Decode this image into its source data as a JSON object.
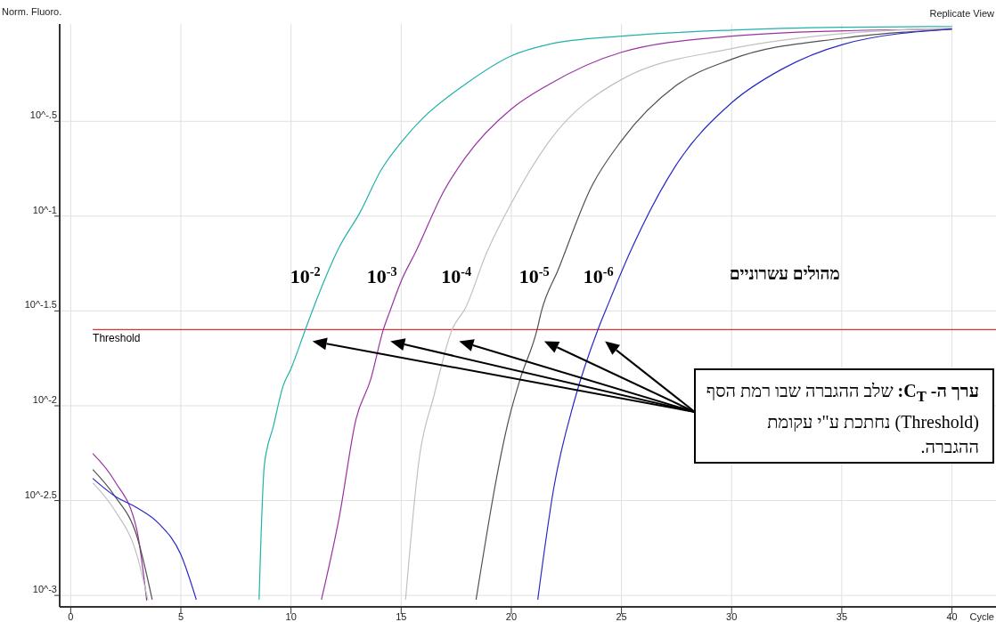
{
  "chart_data": {
    "type": "line",
    "log": "y",
    "grid": true,
    "xlabel": "Cycle",
    "ylabel": "Norm. Fluoro.",
    "legend_title": "מהולים עשרוניים",
    "xlim": [
      -0.5,
      42
    ],
    "xticks": [
      0,
      5,
      10,
      15,
      20,
      25,
      30,
      35,
      40
    ],
    "ylim": [
      0.00087,
      1.03
    ],
    "yticks": [
      {
        "value": 0.3162,
        "label": "10^-.5"
      },
      {
        "value": 0.1,
        "label": "10^-1"
      },
      {
        "value": 0.03162,
        "label": "10^-1.5"
      },
      {
        "value": 0.01,
        "label": "10^-2"
      },
      {
        "value": 0.003162,
        "label": "10^-2.5"
      },
      {
        "value": 0.001,
        "label": "10^-3"
      }
    ],
    "ref_lines": [
      {
        "axis": "y",
        "value": 0.0252,
        "label": "Threshold",
        "color": "#e03030"
      }
    ],
    "annotations": [
      "Replicate View",
      "ערך ה- C$_{T}$: שלב ההגברה שבו רמת הסף (Threshold) נחתכת ע\"י עקומת ההגברה."
    ],
    "series": [
      {
        "name": "10$^{-2}$",
        "color": "#20b2aa",
        "x": [
          8.55,
          8.79,
          9.2,
          9.64,
          10,
          10.65,
          11,
          12.19,
          13.14,
          14.09,
          15.06,
          16,
          17.92,
          20,
          21.74,
          25,
          30,
          35,
          40
        ],
        "values": [
          0.00095,
          0.00487,
          0.0078,
          0.0127,
          0.0157,
          0.0252,
          0.0324,
          0.0686,
          0.105,
          0.175,
          0.25,
          0.33,
          0.497,
          0.7,
          0.807,
          0.889,
          0.957,
          0.99,
          1.0
        ]
      },
      {
        "name": "10$^{-3}$",
        "color": "#9932a0",
        "x": [
          1,
          2,
          3,
          3.45,
          7,
          11.38,
          12.19,
          12.95,
          13.62,
          14.19,
          14.48,
          15.06,
          15.63,
          16.96,
          17.92,
          20,
          21.74,
          25,
          30,
          35.1,
          40
        ],
        "values": [
          0.0056,
          0.004,
          0.00222,
          0.00094,
          null,
          0.00095,
          0.00259,
          0.0085,
          0.0138,
          0.0252,
          0.0313,
          0.0471,
          0.0637,
          0.137,
          0.204,
          0.367,
          0.497,
          0.731,
          0.889,
          0.949,
          0.968
        ]
      },
      {
        "name": "10$^{-4}$",
        "color": "#c0c0c0",
        "x": [
          1,
          2,
          3,
          3.5,
          8,
          15.2,
          15.82,
          16.48,
          17.31,
          17.92,
          18.87,
          20,
          21.74,
          25,
          30,
          35.1,
          40
        ],
        "values": [
          0.00392,
          0.00281,
          0.00164,
          0.00095,
          null,
          0.00095,
          0.00527,
          0.0112,
          0.0252,
          0.0328,
          0.0637,
          0.117,
          0.25,
          0.525,
          0.764,
          0.918,
          0.98
        ]
      },
      {
        "name": "10$^{-5}$",
        "color": "#505050",
        "x": [
          1,
          2,
          3,
          3.7,
          10,
          18.4,
          19.92,
          20.4,
          21.17,
          21.36,
          22.12,
          23.64,
          25,
          27.47,
          30,
          35.1,
          40
        ],
        "values": [
          0.00461,
          0.00334,
          0.00206,
          0.00095,
          null,
          0.00095,
          0.0088,
          0.0138,
          0.0252,
          0.0313,
          0.0519,
          0.143,
          0.25,
          0.487,
          0.671,
          0.869,
          0.968
        ]
      },
      {
        "name": "10$^{-6}$",
        "color": "#2828c8",
        "x": [
          1,
          2,
          3,
          4,
          5,
          5.7,
          12,
          21.2,
          21.93,
          22.87,
          23.93,
          24.4,
          25.37,
          27.47,
          30,
          32.25,
          35.1,
          40
        ],
        "values": [
          0.00414,
          0.00334,
          0.0029,
          0.00239,
          0.00164,
          0.00095,
          null,
          0.00095,
          0.0037,
          0.0107,
          0.0252,
          0.0344,
          0.0637,
          0.185,
          0.396,
          0.593,
          0.807,
          0.968
        ]
      }
    ]
  }
}
